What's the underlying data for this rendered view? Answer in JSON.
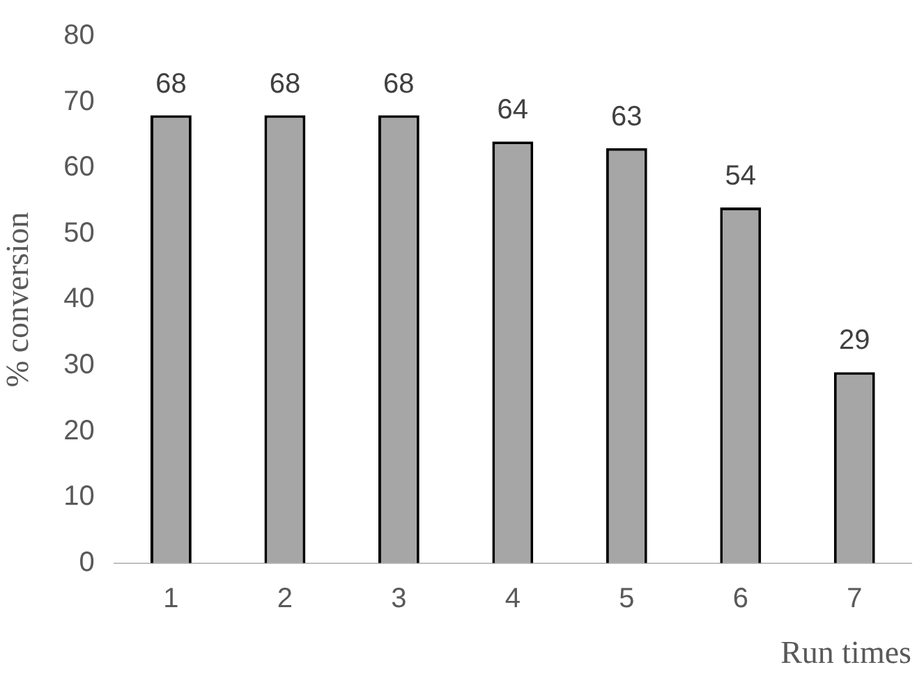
{
  "chart_data": {
    "type": "bar",
    "xlabel": "Run times",
    "ylabel": "% conversion",
    "categories": [
      "1",
      "2",
      "3",
      "4",
      "5",
      "6",
      "7"
    ],
    "values": [
      68,
      68,
      68,
      64,
      63,
      54,
      29
    ],
    "color": "#a6a6a6",
    "ylim": [
      0,
      80
    ],
    "yticks": [
      0,
      10,
      20,
      30,
      40,
      50,
      60,
      70,
      80
    ],
    "grid": false,
    "legend": false,
    "data_labels": true
  }
}
